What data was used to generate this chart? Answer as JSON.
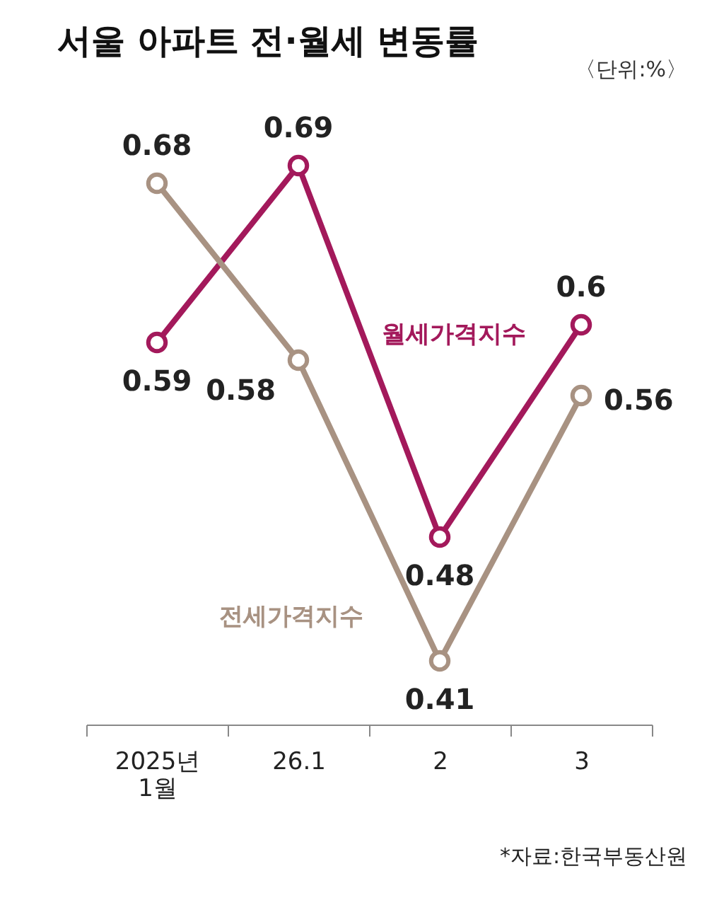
{
  "chart_data": {
    "type": "line",
    "title": "서울 아파트 전·월세 변동률",
    "subtitle": "〈단위:%〉",
    "categories": [
      "2025년 1월",
      "26.1",
      "2",
      "3"
    ],
    "series": [
      {
        "name": "월세가격지수",
        "color": "#a3195b",
        "values": [
          0.59,
          0.69,
          0.48,
          0.6
        ]
      },
      {
        "name": "전세가격지수",
        "color": "#a89282",
        "values": [
          0.68,
          0.58,
          0.41,
          0.56
        ]
      }
    ],
    "data_labels": true,
    "marker": "circle",
    "line_style": "solid",
    "grid": false,
    "legend": false,
    "tick_labels": "x",
    "annotations": [
      "*자료:한국부동산원"
    ]
  }
}
